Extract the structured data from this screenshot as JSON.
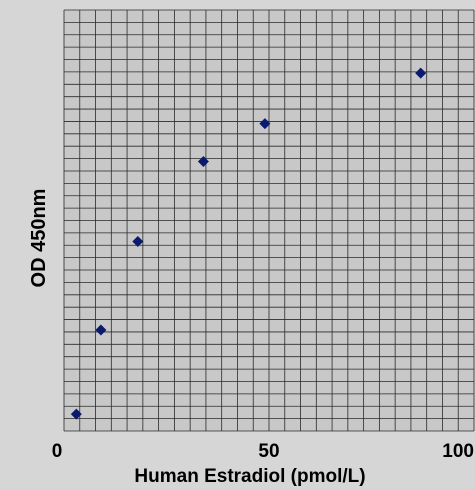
{
  "chart_data": {
    "type": "scatter",
    "xlabel": "Human Estradiol (pmol/L)",
    "ylabel": "OD 450nm",
    "xlim": [
      0,
      100
    ],
    "ylim": [
      0,
      1
    ],
    "x_ticks": [
      "0",
      "50",
      "100"
    ],
    "grid": true,
    "series": [
      {
        "marker": "diamond",
        "color": "#0a1a6e",
        "points": [
          {
            "x": 3,
            "y": 0.04
          },
          {
            "x": 9,
            "y": 0.24
          },
          {
            "x": 18,
            "y": 0.45
          },
          {
            "x": 34,
            "y": 0.64
          },
          {
            "x": 49,
            "y": 0.73
          },
          {
            "x": 87,
            "y": 0.85
          }
        ]
      }
    ]
  },
  "colors": {
    "plot_background": "#c8c8c8",
    "page_background": "#d6d6d6",
    "grid": "#2a2a2a",
    "marker": "#0a1a6e"
  }
}
